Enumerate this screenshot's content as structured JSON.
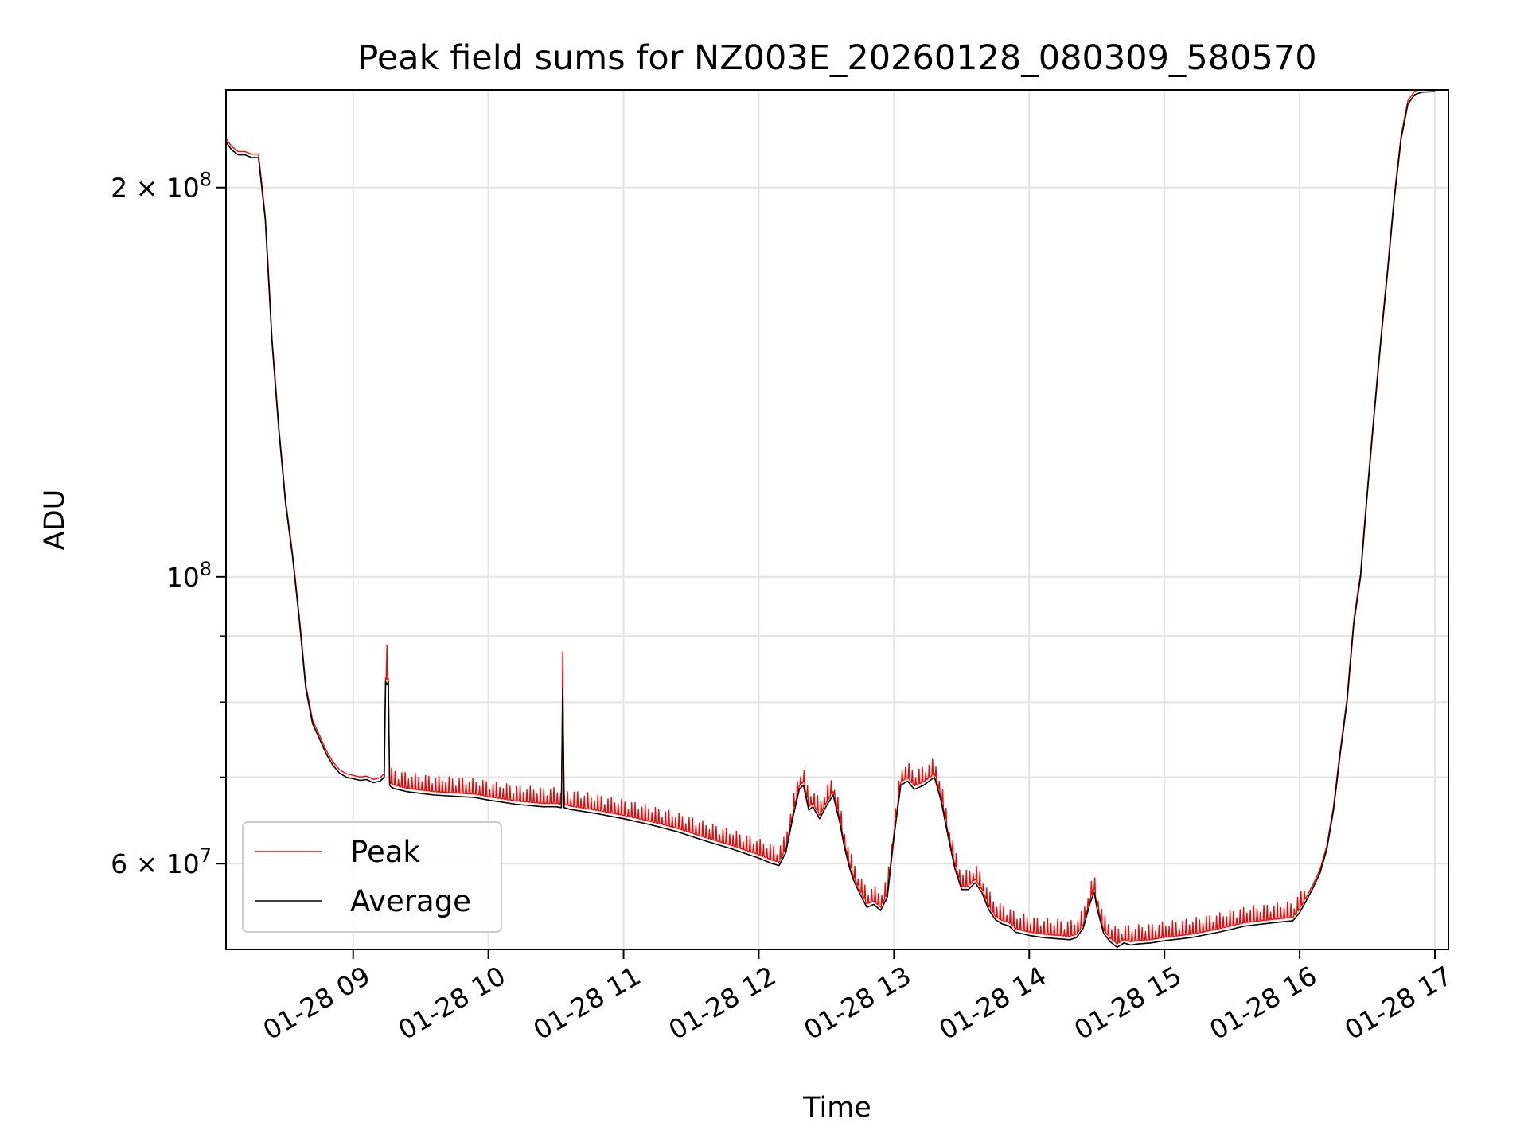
{
  "chart_data": {
    "type": "line",
    "title": "Peak field sums for NZ003E_20260128_080309_580570",
    "xlabel": "Time",
    "ylabel": "ADU",
    "yscale": "log",
    "ylim": [
      51500000,
      238000000
    ],
    "xlim": [
      8.06,
      17.1
    ],
    "grid": true,
    "x_ticks": [
      {
        "value": 9,
        "label": "01-28 09"
      },
      {
        "value": 10,
        "label": "01-28 10"
      },
      {
        "value": 11,
        "label": "01-28 11"
      },
      {
        "value": 12,
        "label": "01-28 12"
      },
      {
        "value": 13,
        "label": "01-28 13"
      },
      {
        "value": 14,
        "label": "01-28 14"
      },
      {
        "value": 15,
        "label": "01-28 15"
      },
      {
        "value": 16,
        "label": "01-28 16"
      },
      {
        "value": 17,
        "label": "01-28 17"
      }
    ],
    "y_major_ticks": [
      {
        "value": 60000000,
        "mantissa": "6",
        "exp": "7"
      },
      {
        "value": 100000000,
        "mantissa": "",
        "exp": "8"
      },
      {
        "value": 200000000,
        "mantissa": "2",
        "exp": "8"
      }
    ],
    "y_minor_ticks": [
      70000000,
      80000000,
      90000000
    ],
    "legend": {
      "location": "lower-left",
      "entries": [
        "Peak",
        "Average"
      ]
    },
    "colors": {
      "Peak": "#ff0000",
      "Average": "#000000"
    },
    "x_unit": "hour of 2026-01-28 (decimal)",
    "series": [
      {
        "name": "Average",
        "x": [
          8.06,
          8.1,
          8.15,
          8.2,
          8.25,
          8.3,
          8.35,
          8.4,
          8.45,
          8.5,
          8.55,
          8.6,
          8.65,
          8.7,
          8.75,
          8.8,
          8.85,
          8.9,
          8.95,
          9.0,
          9.05,
          9.1,
          9.15,
          9.2,
          9.23,
          9.24,
          9.25,
          9.26,
          9.27,
          9.28,
          9.3,
          9.35,
          9.4,
          9.5,
          9.6,
          9.7,
          9.8,
          9.9,
          10.0,
          10.2,
          10.4,
          10.5,
          10.54,
          10.55,
          10.56,
          10.58,
          10.6,
          10.8,
          11.0,
          11.2,
          11.4,
          11.6,
          11.8,
          12.0,
          12.1,
          12.15,
          12.2,
          12.25,
          12.3,
          12.33,
          12.37,
          12.4,
          12.45,
          12.5,
          12.55,
          12.6,
          12.63,
          12.67,
          12.7,
          12.75,
          12.8,
          12.85,
          12.9,
          12.95,
          13.0,
          13.05,
          13.1,
          13.15,
          13.18,
          13.22,
          13.26,
          13.3,
          13.35,
          13.4,
          13.45,
          13.5,
          13.55,
          13.6,
          13.65,
          13.7,
          13.75,
          13.8,
          13.85,
          13.9,
          14.0,
          14.1,
          14.2,
          14.3,
          14.35,
          14.4,
          14.45,
          14.48,
          14.5,
          14.55,
          14.6,
          14.65,
          14.7,
          14.75,
          14.8,
          14.9,
          15.0,
          15.2,
          15.4,
          15.6,
          15.8,
          15.95,
          16.0,
          16.05,
          16.1,
          16.15,
          16.2,
          16.25,
          16.3,
          16.35,
          16.4,
          16.45,
          16.5,
          16.55,
          16.6,
          16.65,
          16.7,
          16.75,
          16.8,
          16.85,
          16.9,
          16.95,
          17.0
        ],
        "y": [
          217000000,
          214000000,
          212000000,
          212000000,
          211000000,
          211000000,
          189000000,
          152000000,
          130000000,
          114000000,
          104000000,
          93000000,
          82000000,
          77000000,
          75000000,
          73000000,
          71500000,
          70500000,
          70000000,
          69800000,
          69600000,
          69700000,
          69300000,
          69500000,
          70000000,
          83000000,
          82500000,
          83000000,
          69000000,
          68800000,
          68600000,
          68400000,
          68200000,
          68000000,
          67800000,
          67700000,
          67600000,
          67500000,
          67200000,
          66700000,
          66400000,
          66400000,
          66300000,
          82000000,
          66300000,
          66200000,
          66100000,
          65600000,
          65000000,
          64300000,
          63500000,
          62500000,
          61600000,
          60600000,
          60000000,
          59800000,
          61200000,
          65000000,
          68500000,
          69000000,
          66000000,
          66400000,
          65000000,
          66500000,
          67800000,
          64500000,
          62000000,
          59600000,
          58300000,
          56800000,
          55500000,
          55800000,
          55200000,
          56500000,
          63000000,
          69000000,
          69500000,
          68500000,
          68700000,
          69000000,
          69500000,
          70000000,
          67000000,
          63000000,
          59500000,
          57300000,
          57300000,
          58000000,
          57000000,
          55300000,
          54300000,
          53900000,
          53700000,
          53100000,
          52800000,
          52600000,
          52500000,
          52400000,
          52600000,
          53500000,
          55900000,
          57000000,
          55500000,
          53000000,
          52200000,
          51700000,
          52100000,
          51900000,
          52000000,
          52100000,
          52300000,
          52600000,
          53100000,
          53700000,
          54000000,
          54200000,
          55000000,
          56200000,
          57500000,
          59000000,
          61500000,
          66000000,
          73000000,
          80000000,
          92000000,
          100000000,
          116000000,
          133000000,
          152000000,
          172000000,
          196000000,
          218000000,
          232000000,
          236000000,
          237000000,
          237200000,
          237300000
        ]
      },
      {
        "name": "Peak",
        "spikes_every_hours": 0.025,
        "spike_pct": 3.5,
        "spike_range": [
          9.28,
          16.05
        ],
        "notes": "Peak follows Average closely with frequent narrow upward spikes of a few percent; tall spikes near 09:15 and 10:33 reach ~88.5e6 and ~87.5e6."
      }
    ]
  }
}
